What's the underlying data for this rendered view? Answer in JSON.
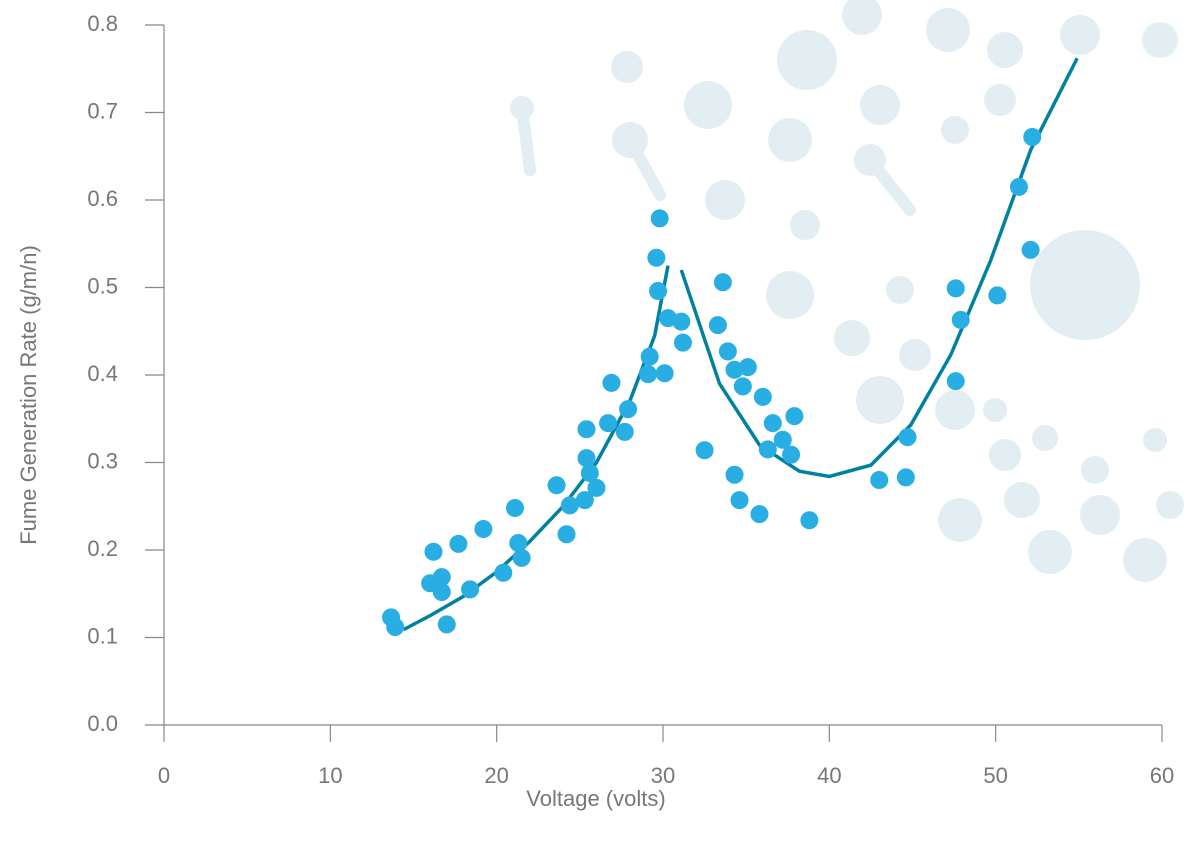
{
  "chart_data": {
    "type": "scatter",
    "xlabel": "Voltage (volts)",
    "ylabel": "Fume Generation Rate (g/m/n)",
    "xlim": [
      0,
      60
    ],
    "xticks": [
      0,
      10,
      20,
      30,
      40,
      50,
      60
    ],
    "ylim": [
      0,
      0.8
    ],
    "yticks": [
      {
        "value": 0,
        "label": "0.0"
      },
      0.1,
      0.2,
      0.3,
      0.4,
      0.5,
      0.6,
      0.7,
      0.8
    ],
    "points": {
      "color": "#29aee3",
      "x": [
        13.65,
        13.9,
        16.2,
        16.0,
        16.7,
        16.7,
        17.0,
        17.7,
        19.2,
        18.4,
        20.4,
        21.1,
        21.3,
        21.5,
        23.6,
        24.2,
        24.4,
        25.3,
        25.4,
        25.4,
        25.6,
        26.0,
        26.7,
        26.9,
        27.7,
        27.9,
        29.1,
        29.2,
        29.6,
        29.8,
        29.7,
        30.1,
        30.3,
        31.1,
        31.2,
        32.5,
        33.6,
        33.3,
        33.9,
        34.3,
        35.1,
        34.8,
        34.3,
        34.6,
        35.8,
        36.0,
        36.6,
        36.3,
        37.2,
        37.7,
        37.9,
        38.8,
        43.0,
        44.6,
        44.7,
        47.6,
        47.6,
        47.9,
        50.1,
        51.4,
        52.2,
        52.1
      ],
      "y": [
        0.123,
        0.112,
        0.198,
        0.162,
        0.169,
        0.152,
        0.115,
        0.207,
        0.224,
        0.155,
        0.174,
        0.248,
        0.208,
        0.191,
        0.274,
        0.218,
        0.251,
        0.257,
        0.305,
        0.338,
        0.288,
        0.271,
        0.345,
        0.391,
        0.335,
        0.361,
        0.401,
        0.421,
        0.534,
        0.579,
        0.496,
        0.402,
        0.465,
        0.461,
        0.437,
        0.314,
        0.506,
        0.457,
        0.427,
        0.406,
        0.409,
        0.387,
        0.286,
        0.257,
        0.241,
        0.375,
        0.345,
        0.315,
        0.326,
        0.309,
        0.353,
        0.234,
        0.28,
        0.283,
        0.329,
        0.499,
        0.393,
        0.463,
        0.491,
        0.615,
        0.672,
        0.543
      ]
    },
    "fits": [
      {
        "color": "#00829e",
        "x": [
          14.4,
          16,
          18,
          20,
          22,
          24,
          26,
          28,
          29.5,
          30.3
        ],
        "y": [
          0.109,
          0.125,
          0.147,
          0.175,
          0.21,
          0.25,
          0.3,
          0.37,
          0.445,
          0.525
        ]
      },
      {
        "color": "#00829e",
        "x": [
          31.1,
          33.4,
          35.8,
          38.2,
          40,
          42.5,
          44.9,
          47.3,
          49.7,
          52.1,
          54.9
        ],
        "y": [
          0.52,
          0.39,
          0.32,
          0.29,
          0.284,
          0.297,
          0.343,
          0.423,
          0.531,
          0.657,
          0.762
        ]
      }
    ]
  }
}
